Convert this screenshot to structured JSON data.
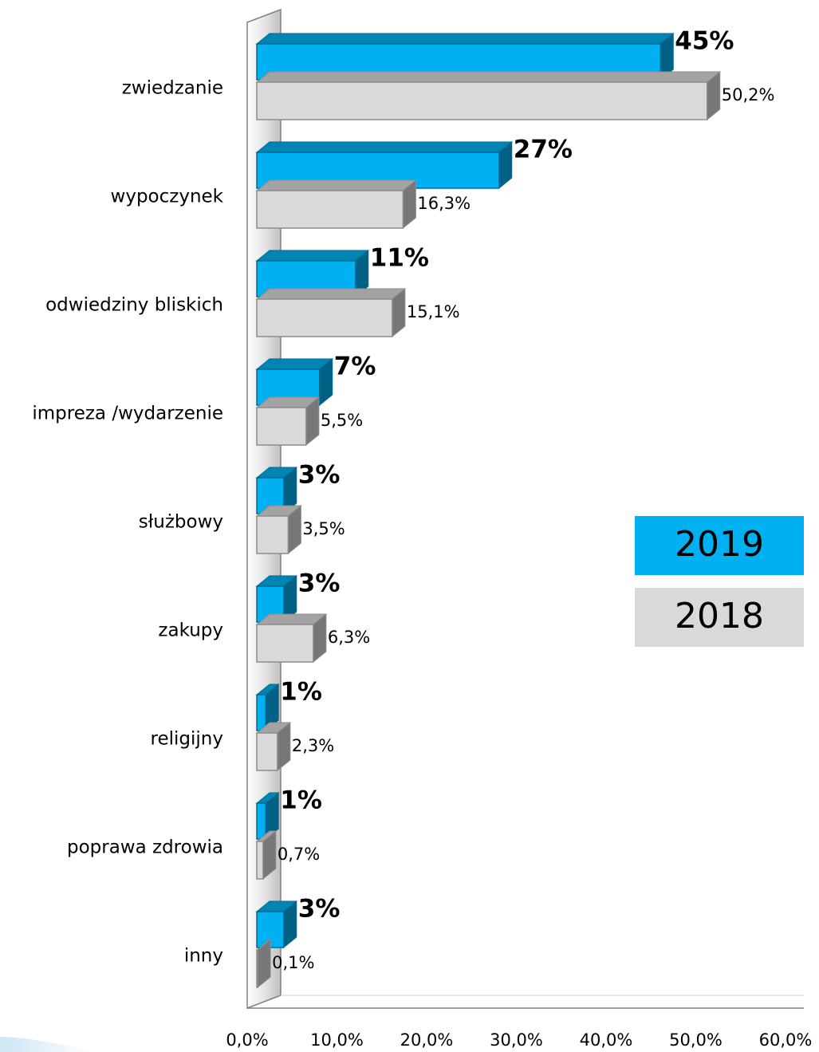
{
  "chart_data": {
    "type": "bar3d_horizontal",
    "categories": [
      "zwiedzanie",
      "wypoczynek",
      "odwiedziny bliskich",
      "impreza /wydarzenie",
      "służbowy",
      "zakupy",
      "religijny",
      "poprawa zdrowia",
      "inny"
    ],
    "series": [
      {
        "name": "2019",
        "color": "#00b0f0",
        "values": [
          45,
          27,
          11,
          7,
          3,
          3,
          1,
          1,
          3
        ],
        "value_labels": [
          "45%",
          "27%",
          "11%",
          "7%",
          "3%",
          "3%",
          "1%",
          "1%",
          "3%"
        ]
      },
      {
        "name": "2018",
        "color": "#d9d9d9",
        "values": [
          50.2,
          16.3,
          15.1,
          5.5,
          3.5,
          6.3,
          2.3,
          0.7,
          0.1
        ],
        "value_labels": [
          "50,2%",
          "16,3%",
          "15,1%",
          "5,5%",
          "3,5%",
          "6,3%",
          "2,3%",
          "0,7%",
          "0,1%"
        ]
      }
    ],
    "xlim": [
      0,
      60
    ],
    "xticks": [
      {
        "value": 0,
        "label": "0,0%"
      },
      {
        "value": 10,
        "label": "10,0%"
      },
      {
        "value": 20,
        "label": "20,0%"
      },
      {
        "value": 30,
        "label": "30,0%"
      },
      {
        "value": 40,
        "label": "40,0%"
      },
      {
        "value": 50,
        "label": "50,0%"
      },
      {
        "value": 60,
        "label": "60,0%"
      }
    ],
    "legend": "right"
  }
}
